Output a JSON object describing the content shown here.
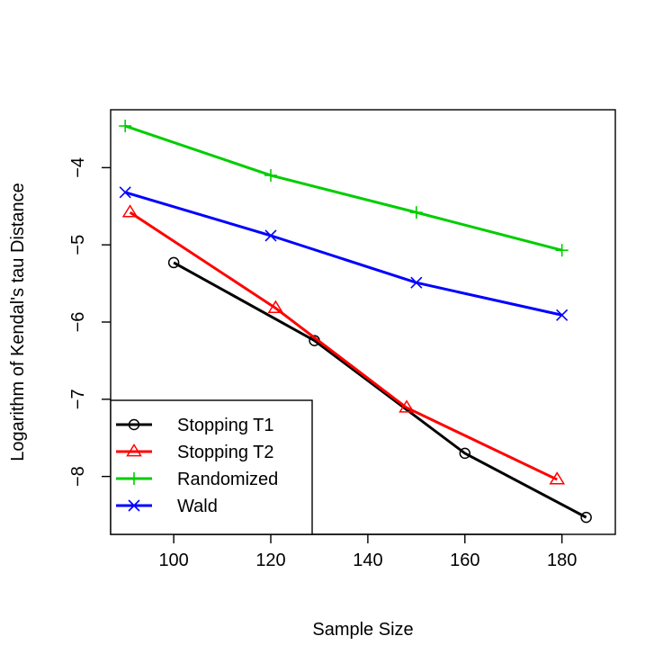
{
  "chart_data": {
    "type": "line",
    "title": "",
    "xlabel": "Sample Size",
    "ylabel": "Logarithm of Kendal's tau Distance",
    "xlim": [
      87,
      191
    ],
    "ylim": [
      -8.75,
      -3.25
    ],
    "xticks": [
      100,
      120,
      140,
      160,
      180
    ],
    "yticks": [
      -8,
      -7,
      -6,
      -5,
      -4
    ],
    "legend_position": "bottom-left",
    "series": [
      {
        "name": "Stopping T1",
        "color": "#000000",
        "marker": "circle",
        "x": [
          100,
          129,
          160,
          185
        ],
        "y": [
          -5.23,
          -6.24,
          -7.7,
          -8.53
        ]
      },
      {
        "name": "Stopping T2",
        "color": "#ff0000",
        "marker": "triangle",
        "x": [
          91,
          121,
          148,
          179
        ],
        "y": [
          -4.58,
          -5.82,
          -7.11,
          -8.04
        ]
      },
      {
        "name": "Randomized",
        "color": "#00cd00",
        "marker": "plus",
        "x": [
          90,
          120,
          150,
          180
        ],
        "y": [
          -3.46,
          -4.1,
          -4.58,
          -5.07
        ]
      },
      {
        "name": "Wald",
        "color": "#0000ff",
        "marker": "cross",
        "x": [
          90,
          120,
          150,
          180
        ],
        "y": [
          -4.32,
          -4.88,
          -5.49,
          -5.91
        ]
      }
    ]
  }
}
